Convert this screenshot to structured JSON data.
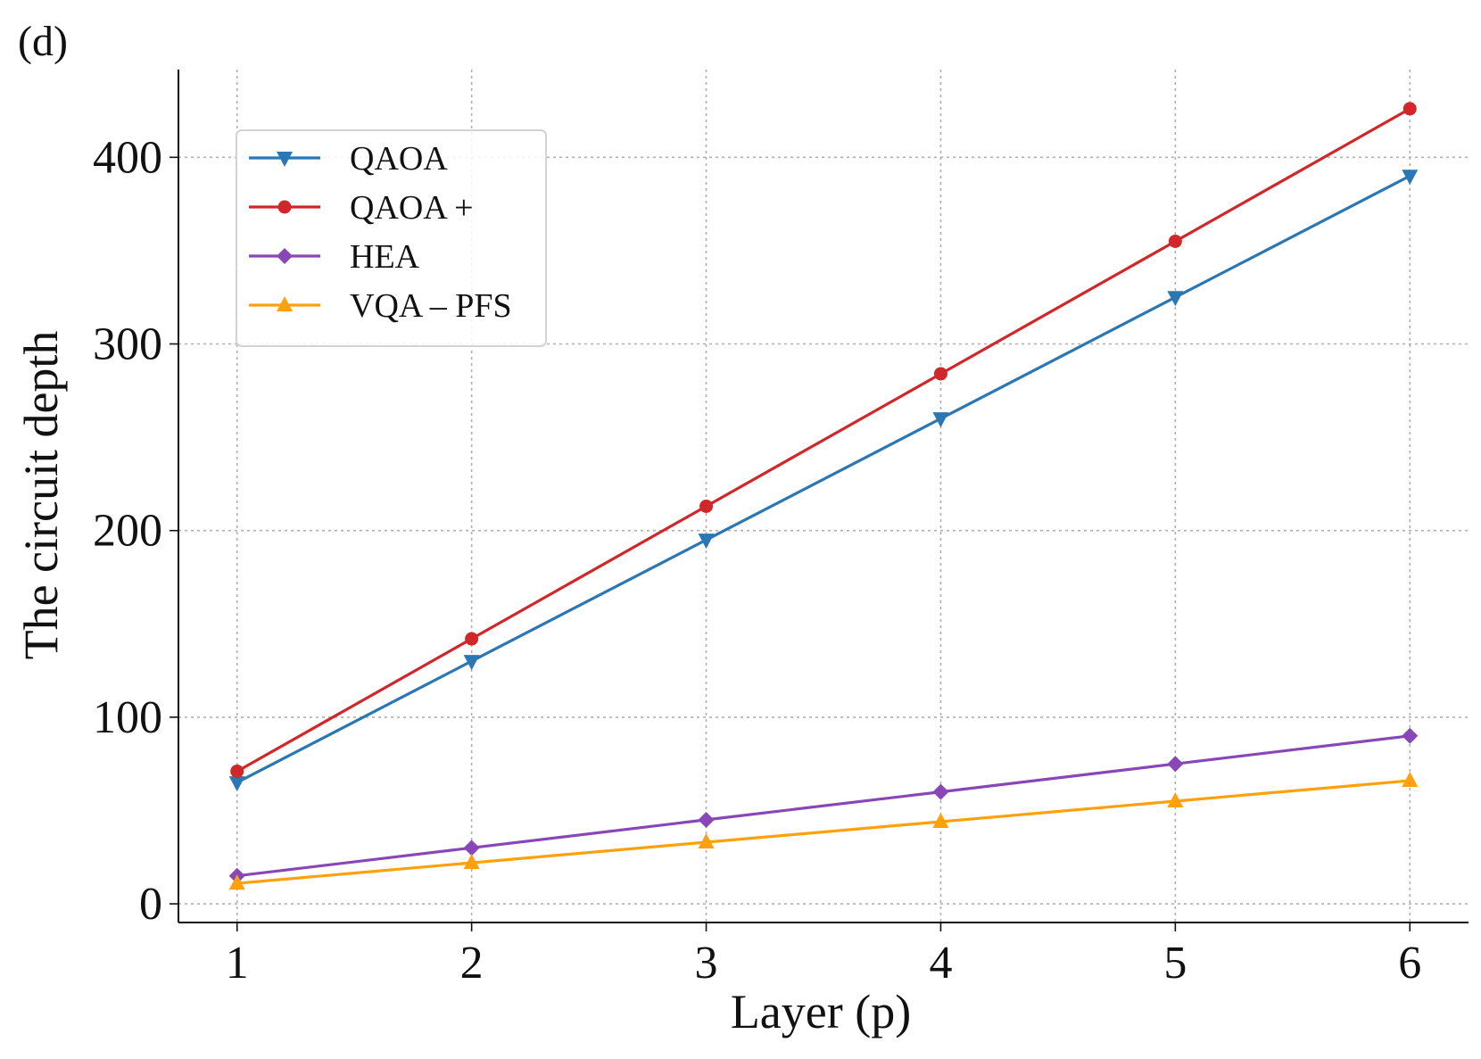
{
  "panel_label": "(d)",
  "chart_data": {
    "type": "line",
    "xlabel": "Layer (p)",
    "ylabel": "The circuit depth",
    "x": [
      1,
      2,
      3,
      4,
      5,
      6
    ],
    "x_ticks": [
      "1",
      "2",
      "3",
      "4",
      "5",
      "6"
    ],
    "y_ticks": [
      "0",
      "100",
      "200",
      "300",
      "400"
    ],
    "xlim": [
      0.75,
      6.25
    ],
    "ylim": [
      -10,
      447
    ],
    "grid": true,
    "legend_position": "top-left",
    "series": [
      {
        "name": "QAOA",
        "values": [
          65,
          130,
          195,
          260,
          325,
          390
        ],
        "color": "#2b77b4",
        "marker": "triangle-down"
      },
      {
        "name": "QAOA +",
        "values": [
          71,
          142,
          213,
          284,
          355,
          426
        ],
        "color": "#d1262a",
        "marker": "circle"
      },
      {
        "name": "HEA",
        "values": [
          15,
          30,
          45,
          60,
          75,
          90
        ],
        "color": "#8846b6",
        "marker": "diamond"
      },
      {
        "name": "VQA – PFS",
        "values": [
          11,
          22,
          33,
          44,
          55,
          66
        ],
        "color": "#ffa10d",
        "marker": "triangle-up"
      }
    ]
  }
}
